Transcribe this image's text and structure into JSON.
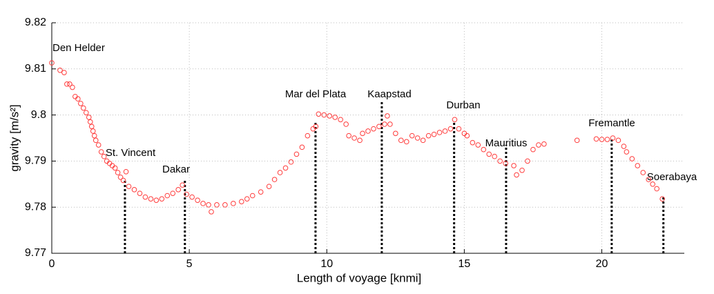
{
  "chart_data": {
    "type": "scatter",
    "x_label": "Length of voyage [knmi]",
    "y_label": "gravity [m/s²]",
    "xlim": [
      0,
      23
    ],
    "ylim": [
      9.77,
      9.82
    ],
    "xticks": [
      0,
      5,
      10,
      15,
      20
    ],
    "yticks": [
      9.77,
      9.78,
      9.79,
      9.8,
      9.81,
      9.82
    ],
    "grid": true,
    "series": [
      {
        "name": "gravity",
        "color": "#ff3b3b",
        "x": [
          0.0,
          0.3,
          0.45,
          0.55,
          0.65,
          0.75,
          0.85,
          0.95,
          1.05,
          1.15,
          1.25,
          1.35,
          1.4,
          1.45,
          1.5,
          1.55,
          1.6,
          1.7,
          1.8,
          1.9,
          2.0,
          2.1,
          2.2,
          2.3,
          2.4,
          2.5,
          2.6,
          2.7,
          2.8,
          3.0,
          3.2,
          3.4,
          3.6,
          3.8,
          4.0,
          4.2,
          4.4,
          4.6,
          4.75,
          4.9,
          5.1,
          5.3,
          5.5,
          5.7,
          5.8,
          6.0,
          6.3,
          6.6,
          6.9,
          7.1,
          7.3,
          7.6,
          7.9,
          8.1,
          8.3,
          8.5,
          8.7,
          8.9,
          9.1,
          9.3,
          9.5,
          9.6,
          9.7,
          9.9,
          10.1,
          10.3,
          10.5,
          10.7,
          10.8,
          11.0,
          11.2,
          11.3,
          11.5,
          11.7,
          11.9,
          12.1,
          12.2,
          12.3,
          12.5,
          12.7,
          12.9,
          13.1,
          13.3,
          13.5,
          13.7,
          13.9,
          14.1,
          14.3,
          14.5,
          14.65,
          14.8,
          15.0,
          15.1,
          15.3,
          15.5,
          15.7,
          15.9,
          16.1,
          16.3,
          16.5,
          16.8,
          16.9,
          17.1,
          17.3,
          17.5,
          17.7,
          17.9,
          19.1,
          19.8,
          20.0,
          20.2,
          20.4,
          20.6,
          20.8,
          20.9,
          21.1,
          21.3,
          21.5,
          21.7,
          21.85,
          22.0,
          22.2
        ],
        "values": [
          9.8113,
          9.8097,
          9.8092,
          9.8067,
          9.8067,
          9.806,
          9.804,
          9.8035,
          9.8025,
          9.8015,
          9.8005,
          9.7995,
          9.7985,
          9.7975,
          9.7965,
          9.7955,
          9.7945,
          9.7935,
          9.792,
          9.791,
          9.79,
          9.7895,
          9.789,
          9.7885,
          9.7875,
          9.7865,
          9.7858,
          9.7877,
          9.7845,
          9.7838,
          9.783,
          9.7822,
          9.7818,
          9.7815,
          9.7818,
          9.7825,
          9.783,
          9.7838,
          9.7848,
          9.7828,
          9.7822,
          9.7815,
          9.7808,
          9.7805,
          9.779,
          9.7805,
          9.7805,
          9.7808,
          9.7812,
          9.7818,
          9.7825,
          9.7833,
          9.7845,
          9.786,
          9.7875,
          9.7885,
          9.7898,
          9.7915,
          9.793,
          9.7955,
          9.797,
          9.7975,
          9.8002,
          9.8,
          9.7998,
          9.7995,
          9.799,
          9.798,
          9.7955,
          9.795,
          9.7945,
          9.796,
          9.7965,
          9.797,
          9.7975,
          9.798,
          9.7998,
          9.798,
          9.796,
          9.7945,
          9.7942,
          9.7955,
          9.795,
          9.7945,
          9.7955,
          9.7958,
          9.7962,
          9.7965,
          9.797,
          9.799,
          9.797,
          9.796,
          9.7955,
          9.794,
          9.7935,
          9.7925,
          9.7915,
          9.791,
          9.79,
          9.7895,
          9.789,
          9.787,
          9.788,
          9.79,
          9.7925,
          9.7935,
          9.7937,
          9.7945,
          9.7948,
          9.7947,
          9.7947,
          9.795,
          9.7945,
          9.7932,
          9.792,
          9.7905,
          9.789,
          9.7875,
          9.786,
          9.785,
          9.784,
          9.7818
        ]
      }
    ],
    "ports": [
      {
        "label": "Den Helder",
        "x": 0,
        "top": null
      },
      {
        "label": "St. Vincent",
        "x": 2.66,
        "top": 9.7861
      },
      {
        "label": "Dakar",
        "x": 4.84,
        "top": 9.786
      },
      {
        "label": "Mar del Plata",
        "x": 9.59,
        "top": 9.7984
      },
      {
        "label": "Kaapstad",
        "x": 12.0,
        "top": 9.8029
      },
      {
        "label": "Durban",
        "x": 14.63,
        "top": 9.7983
      },
      {
        "label": "Mauritius",
        "x": 16.52,
        "top": 9.7935
      },
      {
        "label": "Fremantle",
        "x": 20.36,
        "top": 9.795
      },
      {
        "label": "Soerabaya",
        "x": 22.24,
        "top": 9.7823
      }
    ]
  }
}
